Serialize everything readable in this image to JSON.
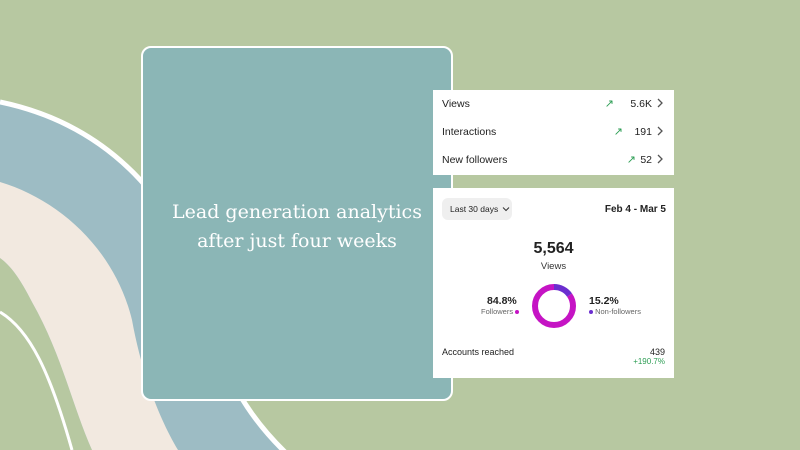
{
  "colors": {
    "background": "#b7c8a1",
    "blue_stripe": "#9dbcc4",
    "cream_stripe": "#f2e9e0",
    "teal_card": "#8bb6b6",
    "accent_magenta": "#c514c4",
    "accent_purple": "#6b2ecf",
    "positive_green": "#2e9e55"
  },
  "headline": {
    "line1": "Lead generation analytics",
    "line2": "after just four weeks"
  },
  "stats": [
    {
      "label": "Views",
      "value": "5.6K",
      "icon": "arrow-up-right-icon"
    },
    {
      "label": "Interactions",
      "value": "191",
      "icon": "arrow-up-right-icon"
    },
    {
      "label": "New followers",
      "value": "52",
      "icon": "arrow-up-right-icon"
    }
  ],
  "insights": {
    "range_label": "Last 30 days",
    "date_range": "Feb 4 - Mar 5",
    "total_value": "5,564",
    "total_label": "Views",
    "followers_pct": "84.8%",
    "followers_label": "Followers",
    "followers_fraction": 0.848,
    "nonfollowers_pct": "15.2%",
    "nonfollowers_label": "Non-followers",
    "nonfollowers_fraction": 0.152,
    "accounts_label": "Accounts reached",
    "accounts_value": "439",
    "accounts_change": "+190.7%"
  }
}
